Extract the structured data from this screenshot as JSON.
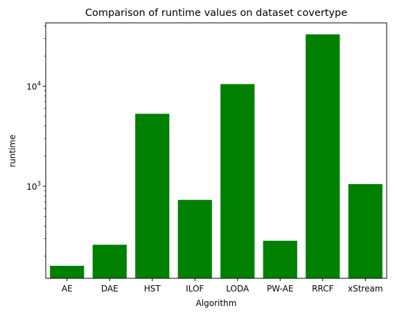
{
  "chart_data": {
    "type": "bar",
    "title": "Comparison of runtime values on dataset covertype",
    "xlabel": "Algorithm",
    "ylabel": "runtime",
    "yscale": "log",
    "ylim": [
      120,
      43000
    ],
    "categories": [
      "AE",
      "DAE",
      "HST",
      "ILOF",
      "LODA",
      "PW-AE",
      "RRCF",
      "xStream"
    ],
    "values": [
      160,
      260,
      5300,
      730,
      10500,
      285,
      33000,
      1050
    ],
    "bar_color": "#008000",
    "y_major_ticks": [
      {
        "value": 1000,
        "base": "10",
        "exp": "3"
      },
      {
        "value": 10000,
        "base": "10",
        "exp": "4"
      }
    ],
    "grid": false,
    "legend": "none"
  }
}
